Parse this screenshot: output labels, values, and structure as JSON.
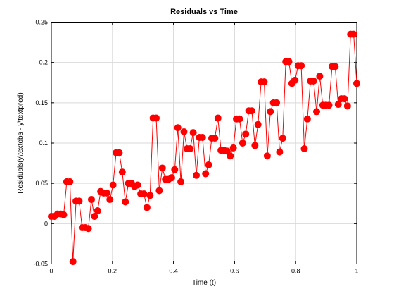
{
  "chart_data": {
    "type": "line",
    "title": "Residuals vs Time",
    "xlabel": "Time (t)",
    "ylabel": "Residuals(y\\textobs - y\\textpred)",
    "xlim": [
      0,
      1
    ],
    "ylim": [
      -0.05,
      0.25
    ],
    "xticks": [
      "0",
      "0.2",
      "0.4",
      "0.6",
      "0.8",
      "1"
    ],
    "yticks": [
      "-0.05",
      "0",
      "0.05",
      "0.1",
      "0.15",
      "0.2",
      "0.25"
    ],
    "xtick_values": [
      0,
      0.2,
      0.4,
      0.6,
      0.8,
      1
    ],
    "ytick_values": [
      -0.05,
      0,
      0.05,
      0.1,
      0.15,
      0.2,
      0.25
    ],
    "grid": true,
    "series": [
      {
        "color": "#ff0000",
        "marker": "circle",
        "x": [
          0.0,
          0.0101,
          0.0202,
          0.0303,
          0.0404,
          0.0505,
          0.0606,
          0.0707,
          0.0808,
          0.0909,
          0.101,
          0.1111,
          0.1212,
          0.1313,
          0.1414,
          0.1515,
          0.1616,
          0.1717,
          0.1818,
          0.1919,
          0.202,
          0.2121,
          0.2222,
          0.2323,
          0.2424,
          0.2525,
          0.2626,
          0.2727,
          0.2828,
          0.2929,
          0.303,
          0.3131,
          0.3232,
          0.3333,
          0.3434,
          0.3535,
          0.3636,
          0.3737,
          0.3838,
          0.3939,
          0.404,
          0.4141,
          0.4242,
          0.4343,
          0.4444,
          0.4545,
          0.4646,
          0.4747,
          0.4848,
          0.4949,
          0.5051,
          0.5152,
          0.5253,
          0.5354,
          0.5455,
          0.5556,
          0.5657,
          0.5758,
          0.5859,
          0.596,
          0.6061,
          0.6162,
          0.6263,
          0.6364,
          0.6465,
          0.6566,
          0.6667,
          0.6768,
          0.6869,
          0.697,
          0.7071,
          0.7172,
          0.7273,
          0.7374,
          0.7475,
          0.7576,
          0.7677,
          0.7778,
          0.7879,
          0.798,
          0.8081,
          0.8182,
          0.8283,
          0.8384,
          0.8485,
          0.8586,
          0.8687,
          0.8788,
          0.8889,
          0.899,
          0.9091,
          0.9192,
          0.9293,
          0.9394,
          0.9495,
          0.9596,
          0.9697,
          0.9798,
          0.9899,
          1.0
        ],
        "y": [
          0.009,
          0.009,
          0.012,
          0.012,
          0.011,
          0.052,
          0.052,
          -0.047,
          0.028,
          0.028,
          -0.005,
          -0.005,
          -0.006,
          0.03,
          0.009,
          0.016,
          0.04,
          0.038,
          0.038,
          0.03,
          0.048,
          0.088,
          0.088,
          0.064,
          0.027,
          0.05,
          0.05,
          0.046,
          0.048,
          0.037,
          0.037,
          0.02,
          0.035,
          0.131,
          0.131,
          0.041,
          0.069,
          0.055,
          0.055,
          0.057,
          0.067,
          0.119,
          0.052,
          0.114,
          0.093,
          0.093,
          0.113,
          0.06,
          0.107,
          0.107,
          0.062,
          0.073,
          0.106,
          0.106,
          0.131,
          0.091,
          0.091,
          0.09,
          0.084,
          0.094,
          0.13,
          0.13,
          0.1,
          0.111,
          0.14,
          0.14,
          0.097,
          0.123,
          0.176,
          0.176,
          0.084,
          0.139,
          0.15,
          0.15,
          0.089,
          0.106,
          0.201,
          0.201,
          0.174,
          0.178,
          0.196,
          0.196,
          0.093,
          0.13,
          0.177,
          0.177,
          0.139,
          0.183,
          0.147,
          0.147,
          0.147,
          0.195,
          0.195,
          0.148,
          0.155,
          0.155,
          0.146,
          0.235,
          0.235,
          0.174
        ]
      }
    ]
  }
}
